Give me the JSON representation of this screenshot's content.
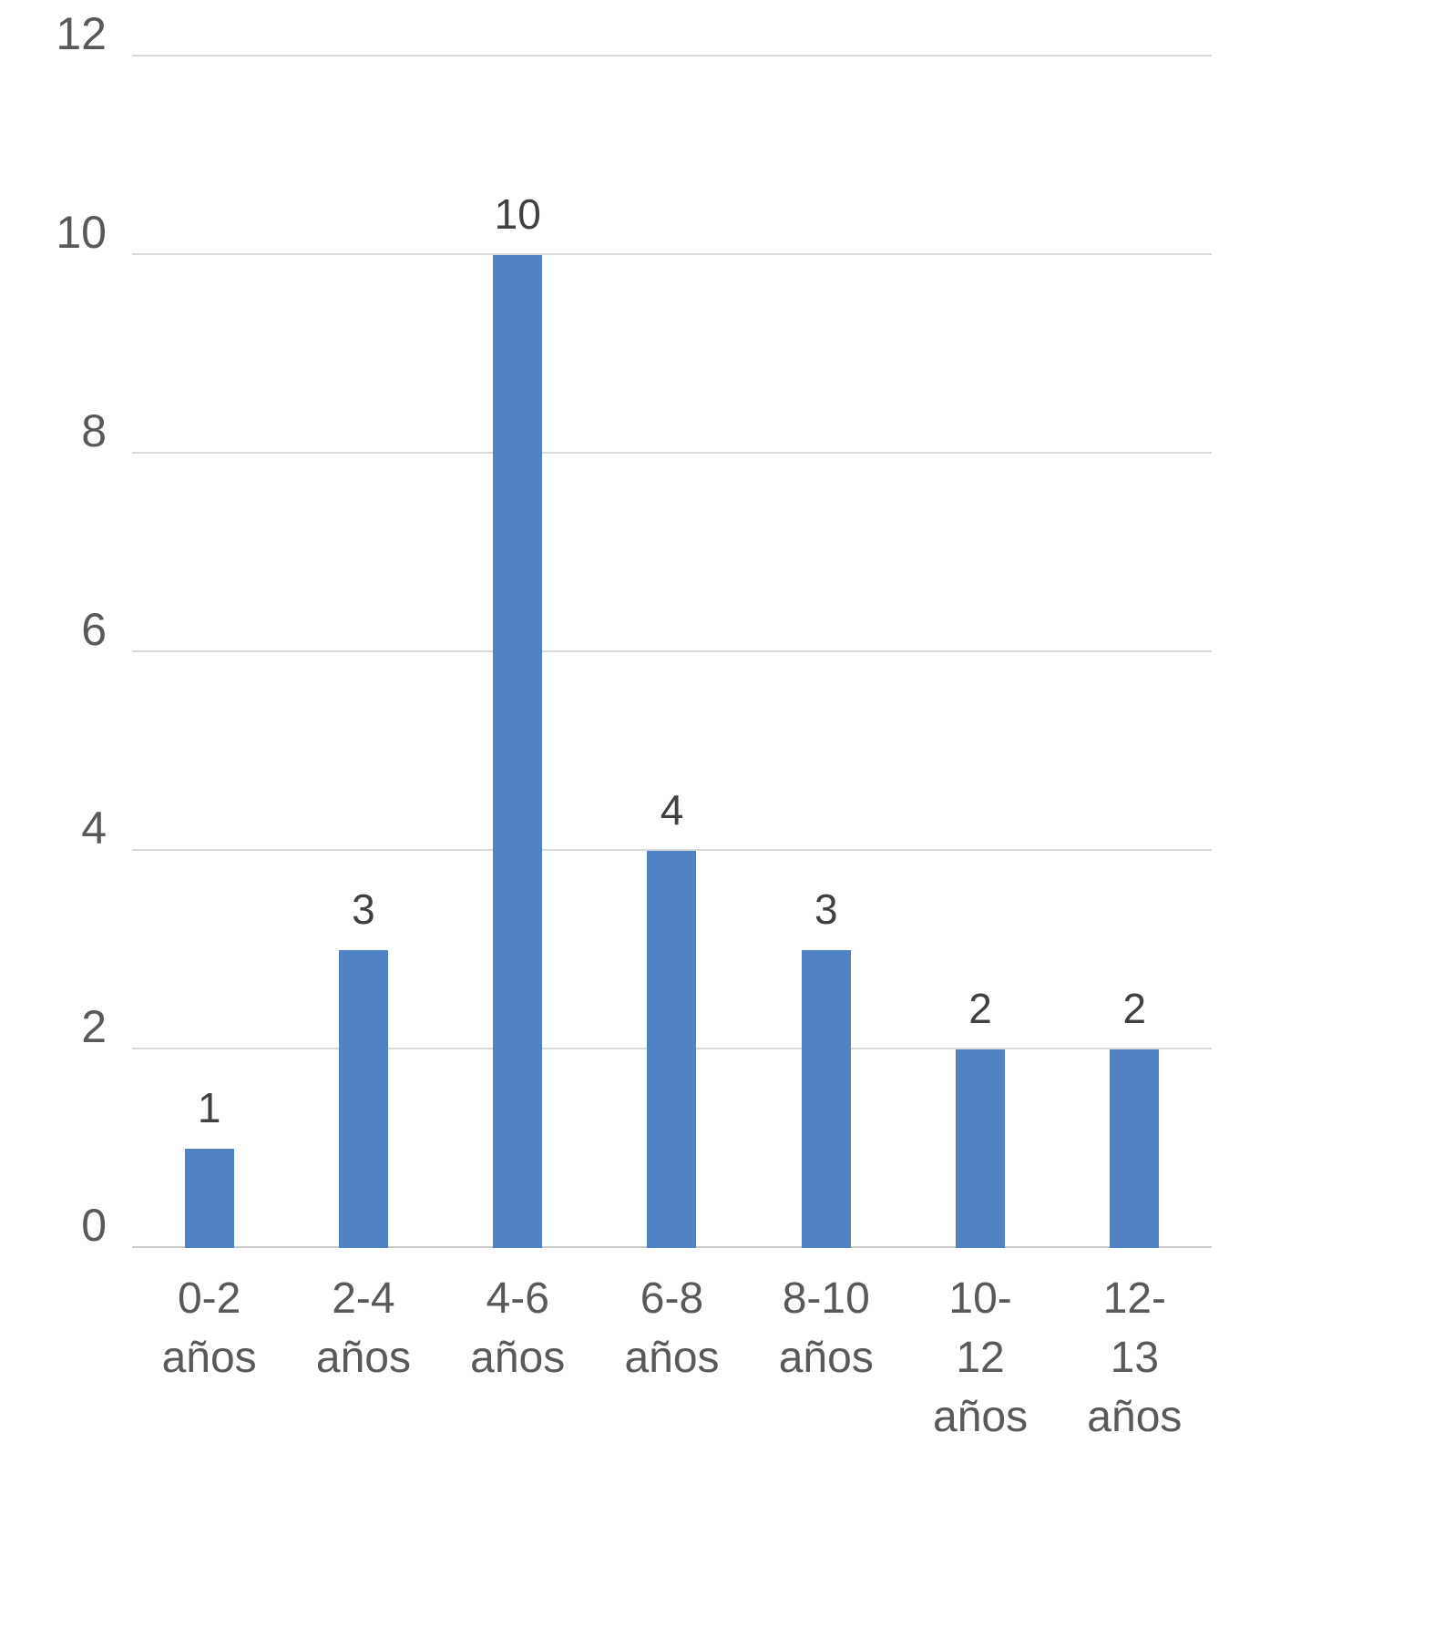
{
  "chart_data": {
    "type": "bar",
    "categories": [
      "0-2\naños",
      "2-4\naños",
      "4-6\naños",
      "6-8\naños",
      "8-10\naños",
      "10-12\naños",
      "12-13\naños"
    ],
    "values": [
      1,
      3,
      10,
      4,
      3,
      2,
      2
    ],
    "value_labels": [
      "1",
      "3",
      "10",
      "4",
      "3",
      "2",
      "2"
    ],
    "title": "",
    "xlabel": "",
    "ylabel": "",
    "ylim": [
      0,
      12
    ],
    "yticks": [
      0,
      2,
      4,
      6,
      8,
      10,
      12
    ],
    "grid": true,
    "legend": false,
    "bar_color": "#5183c4",
    "gridline_color": "#d9d9d9",
    "axis_label_color": "#595959",
    "value_label_color": "#404040",
    "background_color": "#ffffff"
  }
}
